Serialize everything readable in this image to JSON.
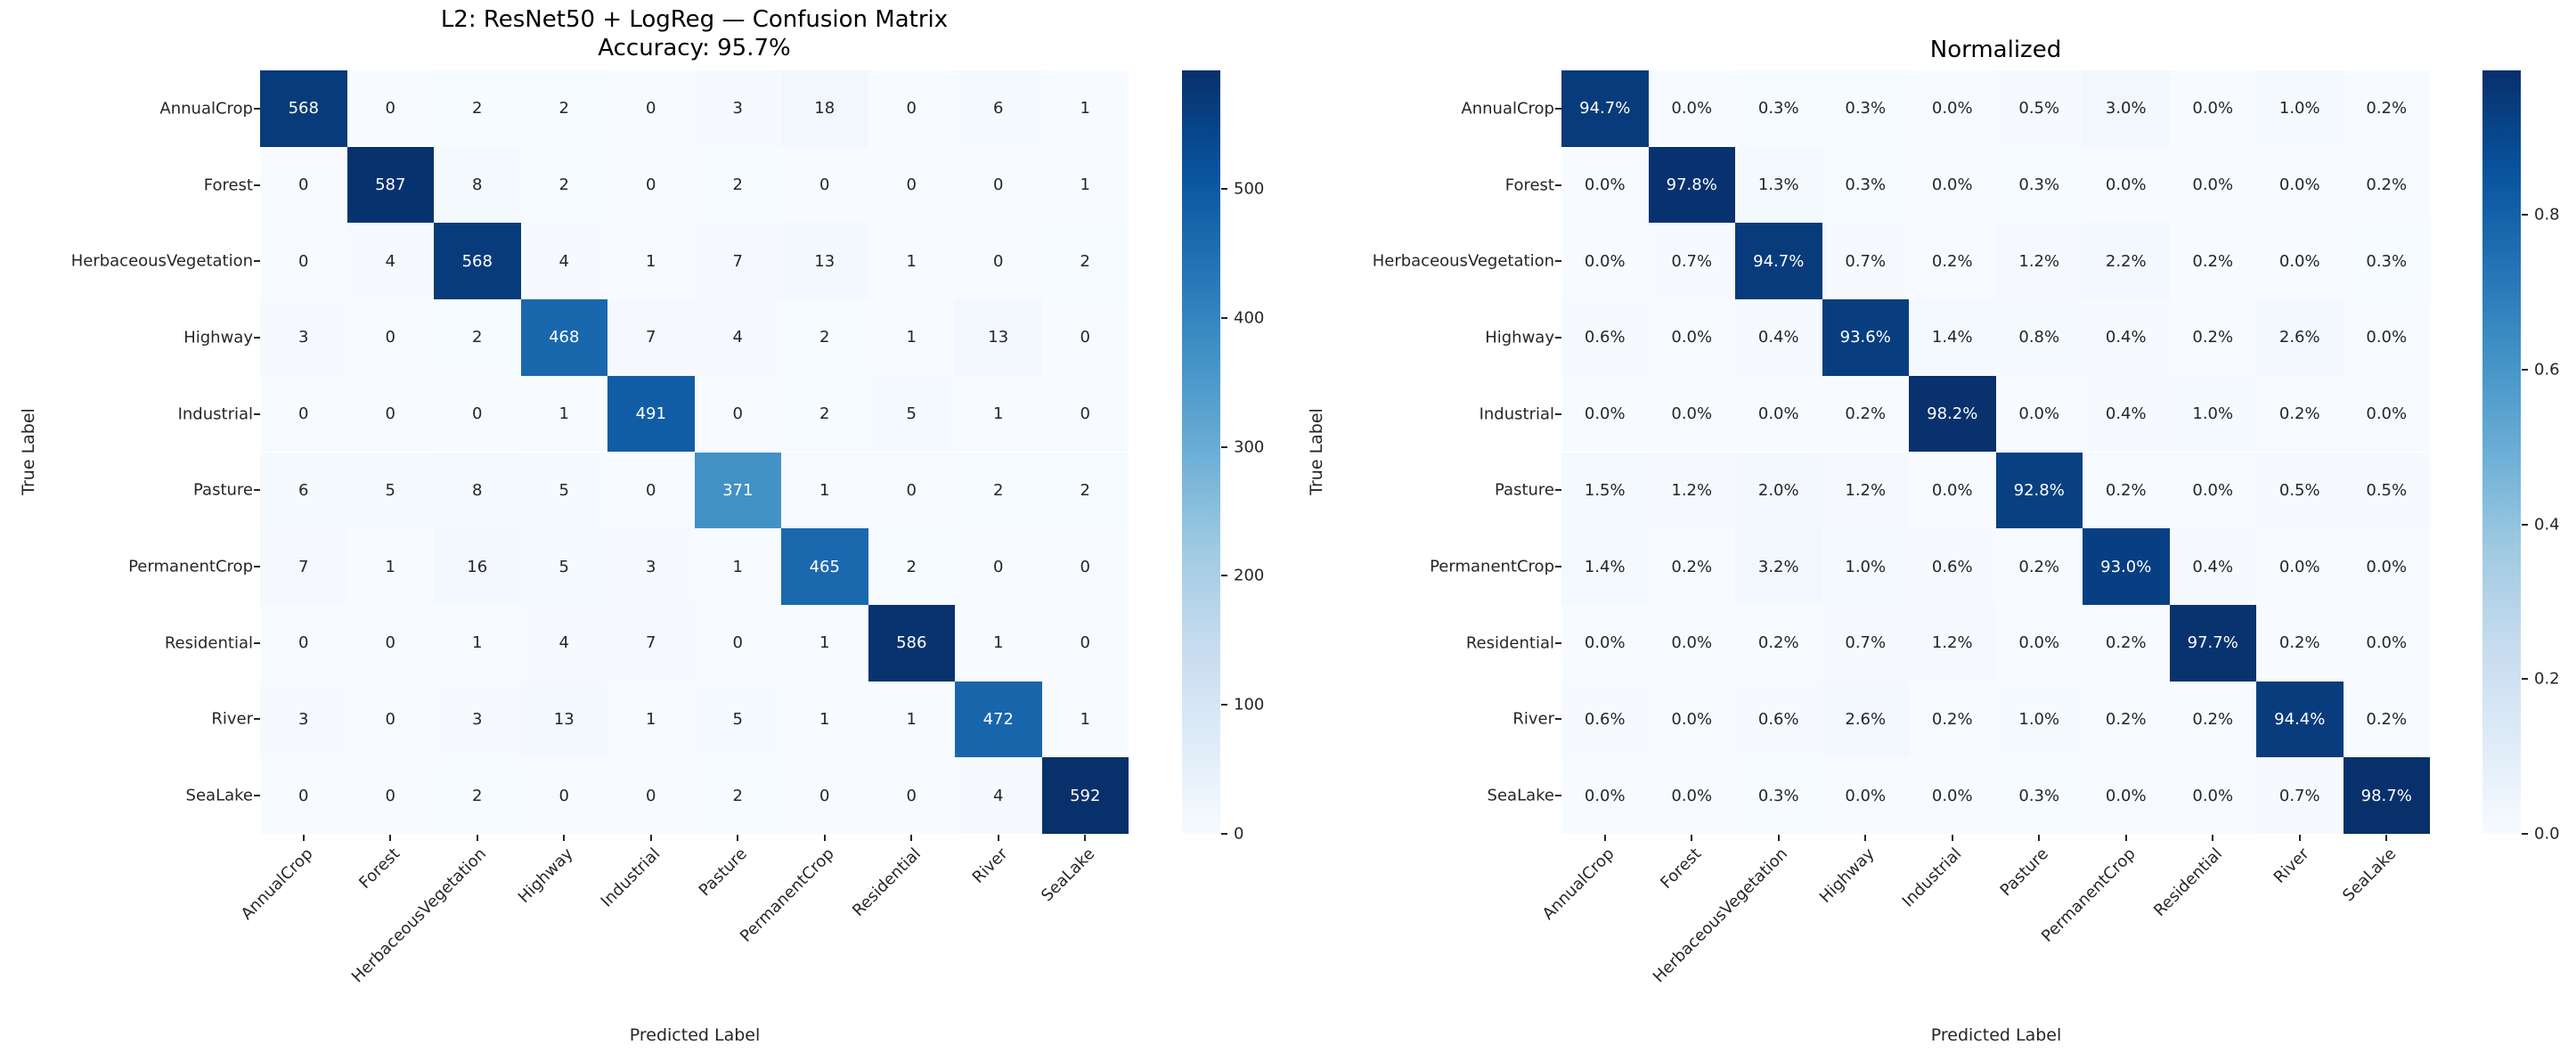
{
  "colors": {
    "background": "#ffffff",
    "colormap_min": "#f7fbff",
    "colormap_max": "#08306b",
    "annotation_dark": "#262626",
    "annotation_light": "#ffffff"
  },
  "chart_data": [
    {
      "type": "heatmap",
      "colormap": "Blues",
      "title_lines": [
        "L2: ResNet50 + LogReg — Confusion Matrix",
        "Accuracy: 95.7%"
      ],
      "xlabel": "Predicted Label",
      "ylabel": "True Label",
      "categories": [
        "AnnualCrop",
        "Forest",
        "HerbaceousVegetation",
        "Highway",
        "Industrial",
        "Pasture",
        "PermanentCrop",
        "Residential",
        "River",
        "SeaLake"
      ],
      "values_format": "int",
      "vmin": 0,
      "vmax": 592,
      "matrix": [
        [
          568,
          0,
          2,
          2,
          0,
          3,
          18,
          0,
          6,
          1
        ],
        [
          0,
          587,
          8,
          2,
          0,
          2,
          0,
          0,
          0,
          1
        ],
        [
          0,
          4,
          568,
          4,
          1,
          7,
          13,
          1,
          0,
          2
        ],
        [
          3,
          0,
          2,
          468,
          7,
          4,
          2,
          1,
          13,
          0
        ],
        [
          0,
          0,
          0,
          1,
          491,
          0,
          2,
          5,
          1,
          0
        ],
        [
          6,
          5,
          8,
          5,
          0,
          371,
          1,
          0,
          2,
          2
        ],
        [
          7,
          1,
          16,
          5,
          3,
          1,
          465,
          2,
          0,
          0
        ],
        [
          0,
          0,
          1,
          4,
          7,
          0,
          1,
          586,
          1,
          0
        ],
        [
          3,
          0,
          3,
          13,
          1,
          5,
          1,
          1,
          472,
          1
        ],
        [
          0,
          0,
          2,
          0,
          0,
          2,
          0,
          0,
          4,
          592
        ]
      ],
      "colorbar": {
        "tick_labels": [
          "0",
          "100",
          "200",
          "300",
          "400",
          "500"
        ],
        "tick_values": [
          0,
          100,
          200,
          300,
          400,
          500
        ],
        "vmax": 592
      }
    },
    {
      "type": "heatmap",
      "colormap": "Blues",
      "title_lines": [
        "Normalized"
      ],
      "xlabel": "Predicted Label",
      "ylabel": "True Label",
      "categories": [
        "AnnualCrop",
        "Forest",
        "HerbaceousVegetation",
        "Highway",
        "Industrial",
        "Pasture",
        "PermanentCrop",
        "Residential",
        "River",
        "SeaLake"
      ],
      "values_format": "percent",
      "values_unit": "%",
      "vmin": 0,
      "vmax": 0.987,
      "matrix": [
        [
          94.7,
          0.0,
          0.3,
          0.3,
          0.0,
          0.5,
          3.0,
          0.0,
          1.0,
          0.2
        ],
        [
          0.0,
          97.8,
          1.3,
          0.3,
          0.0,
          0.3,
          0.0,
          0.0,
          0.0,
          0.2
        ],
        [
          0.0,
          0.7,
          94.7,
          0.7,
          0.2,
          1.2,
          2.2,
          0.2,
          0.0,
          0.3
        ],
        [
          0.6,
          0.0,
          0.4,
          93.6,
          1.4,
          0.8,
          0.4,
          0.2,
          2.6,
          0.0
        ],
        [
          0.0,
          0.0,
          0.0,
          0.2,
          98.2,
          0.0,
          0.4,
          1.0,
          0.2,
          0.0
        ],
        [
          1.5,
          1.2,
          2.0,
          1.2,
          0.0,
          92.8,
          0.2,
          0.0,
          0.5,
          0.5
        ],
        [
          1.4,
          0.2,
          3.2,
          1.0,
          0.6,
          0.2,
          93.0,
          0.4,
          0.0,
          0.0
        ],
        [
          0.0,
          0.0,
          0.2,
          0.7,
          1.2,
          0.0,
          0.2,
          97.7,
          0.2,
          0.0
        ],
        [
          0.6,
          0.0,
          0.6,
          2.6,
          0.2,
          1.0,
          0.2,
          0.2,
          94.4,
          0.2
        ],
        [
          0.0,
          0.0,
          0.3,
          0.0,
          0.0,
          0.3,
          0.0,
          0.0,
          0.7,
          98.7
        ]
      ],
      "colorbar": {
        "tick_labels": [
          "0.0",
          "0.2",
          "0.4",
          "0.6",
          "0.8"
        ],
        "tick_values": [
          0,
          0.2,
          0.4,
          0.6,
          0.8
        ],
        "vmax": 0.987
      }
    }
  ]
}
